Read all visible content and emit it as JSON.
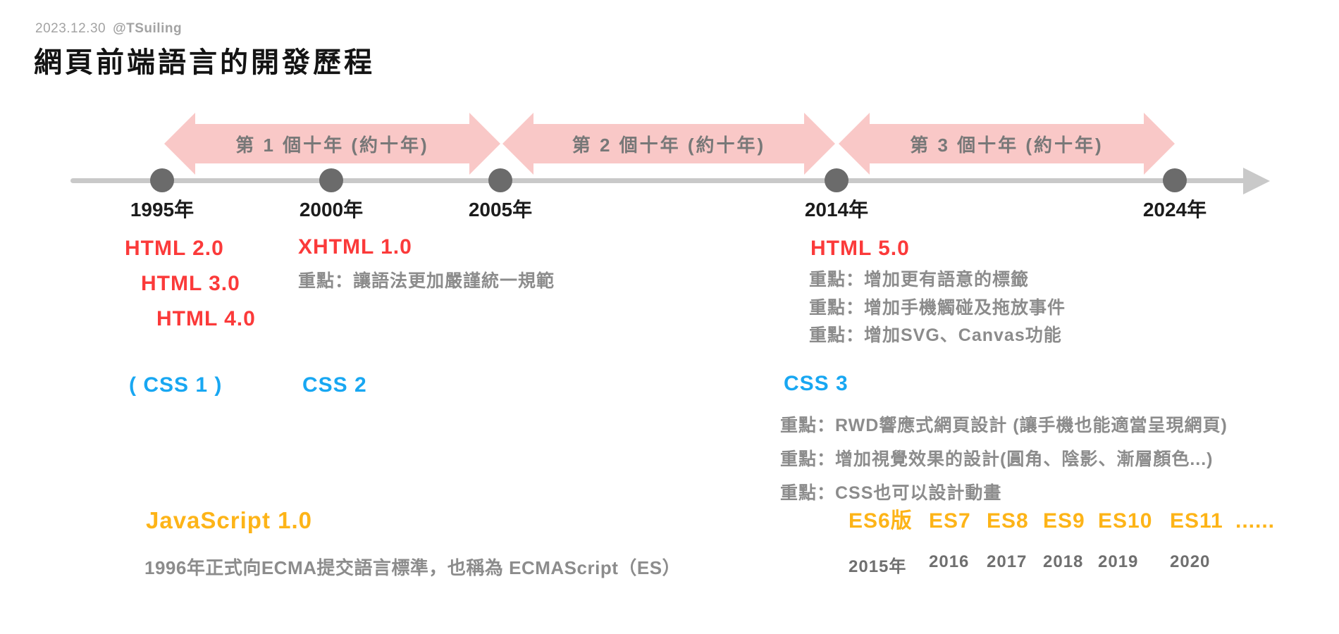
{
  "page": {
    "credit_date": "2023.12.30",
    "credit_handle": "@TSuiling",
    "title": "網頁前端語言的開發歷程"
  },
  "colors": {
    "accent_red": "#fb3a3a",
    "accent_blue": "#18a7f2",
    "accent_orange": "#fdb418",
    "arrow_pink": "#f9c8c7",
    "timeline_gray": "#c9c9c9",
    "dot_gray": "#6b6b6b",
    "note_gray": "#8c8c8c"
  },
  "decade_arrows": [
    {
      "label": "第 1 個十年 (約十年)"
    },
    {
      "label": "第 2 個十年 (約十年)"
    },
    {
      "label": "第 3 個十年 (約十年)"
    }
  ],
  "timeline": {
    "years": [
      "1995年",
      "2000年",
      "2005年",
      "2014年",
      "2024年"
    ]
  },
  "html_track": {
    "era1_versions": [
      "HTML 2.0",
      "HTML 3.0",
      "HTML 4.0"
    ],
    "xhtml": {
      "title": "XHTML 1.0",
      "notes": [
        "重點：讓語法更加嚴謹統一規範"
      ]
    },
    "html5": {
      "title": "HTML 5.0",
      "notes": [
        "重點：增加更有語意的標籤",
        "重點：增加手機觸碰及拖放事件",
        "重點：增加SVG、Canvas功能"
      ]
    }
  },
  "css_track": {
    "css1": "( CSS 1 )",
    "css2": "CSS 2",
    "css3": {
      "title": "CSS 3",
      "notes": [
        "重點：RWD響應式網頁設計 (讓手機也能適當呈現網頁)",
        "重點：增加視覺效果的設計(圓角、陰影、漸層顏色...)",
        "重點：CSS也可以設計動畫"
      ]
    }
  },
  "js_track": {
    "title": "JavaScript 1.0",
    "subtitle": "1996年正式向ECMA提交語言標準，也稱為 ECMAScript（ES）",
    "es_versions": [
      {
        "name": "ES6版",
        "year": "2015年"
      },
      {
        "name": "ES7",
        "year": "2016"
      },
      {
        "name": "ES8",
        "year": "2017"
      },
      {
        "name": "ES9",
        "year": "2018"
      },
      {
        "name": "ES10",
        "year": "2019"
      },
      {
        "name": "ES11",
        "year": "2020"
      },
      {
        "name": "......",
        "year": ""
      }
    ]
  }
}
